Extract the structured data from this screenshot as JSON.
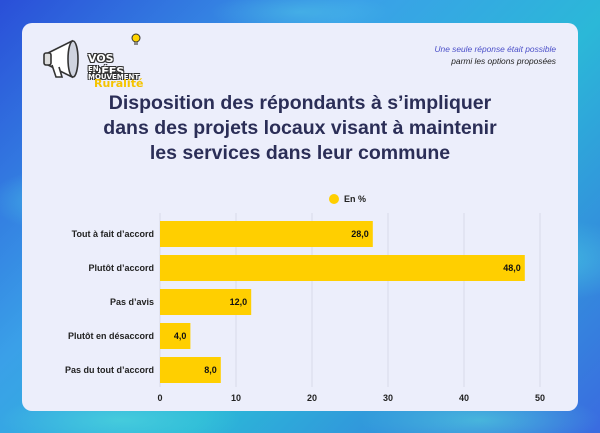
{
  "logo": {
    "line1": "VOS IDÉES",
    "line2": "EN MOUVEMENT",
    "line3": "Ruralité"
  },
  "note": {
    "line1": "Une seule réponse était possible",
    "line2": "parmi les options proposées"
  },
  "colors": {
    "bar": "#ffcf00",
    "title": "#2b2e57",
    "note": "#4a4ec8",
    "grid": "#d9dbe8"
  },
  "chart_data": {
    "type": "bar",
    "orientation": "horizontal",
    "title_lines": [
      "Disposition des répondants à s’impliquer",
      "dans des projets locaux visant à maintenir",
      "les services dans leur commune"
    ],
    "legend": "En %",
    "legend_position": "top-center",
    "categories": [
      "Tout à fait d’accord",
      "Plutôt d’accord",
      "Pas d’avis",
      "Plutôt en désaccord",
      "Pas du tout d’accord"
    ],
    "values": [
      28.0,
      48.0,
      12.0,
      4.0,
      8.0
    ],
    "value_labels": [
      "28,0",
      "48,0",
      "12,0",
      "4,0",
      "8,0"
    ],
    "xlim": [
      0,
      50
    ],
    "xticks": [
      "0",
      "10",
      "20",
      "30",
      "40",
      "50"
    ],
    "xtick_values": [
      0,
      10,
      20,
      30,
      40,
      50
    ],
    "grid": true
  }
}
